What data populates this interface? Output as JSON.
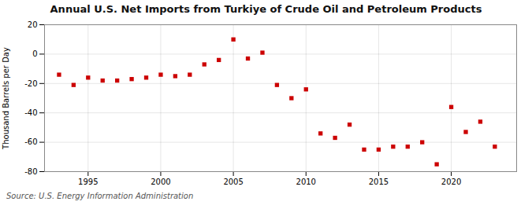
{
  "chart_data": {
    "type": "scatter",
    "title": "Annual U.S. Net Imports from Turkiye of Crude Oil and Petroleum Products",
    "ylabel": "Thousand Barrels per Day",
    "source": "Source: U.S. Energy Information Administration",
    "x": [
      1993,
      1994,
      1995,
      1996,
      1997,
      1998,
      1999,
      2000,
      2001,
      2002,
      2003,
      2004,
      2005,
      2006,
      2007,
      2008,
      2009,
      2010,
      2011,
      2012,
      2013,
      2014,
      2015,
      2016,
      2017,
      2018,
      2019,
      2020,
      2021,
      2022,
      2023
    ],
    "values": [
      -14,
      -21,
      -16,
      -18,
      -18,
      -17,
      -16,
      -14,
      -15,
      -14,
      -7,
      -4,
      10,
      -3,
      1,
      -21,
      -30,
      -24,
      -54,
      -57,
      -48,
      -65,
      -65,
      -63,
      -63,
      -60,
      -75,
      -36,
      -53,
      -46,
      -63
    ],
    "color": "#cc0000",
    "marker": "square",
    "xlim": [
      1992,
      2024.5
    ],
    "ylim": [
      -80,
      20
    ],
    "xticks": [
      1995,
      2000,
      2005,
      2010,
      2015,
      2020
    ],
    "yticks": [
      -80,
      -60,
      -40,
      -20,
      0,
      20
    ],
    "grid": true
  }
}
